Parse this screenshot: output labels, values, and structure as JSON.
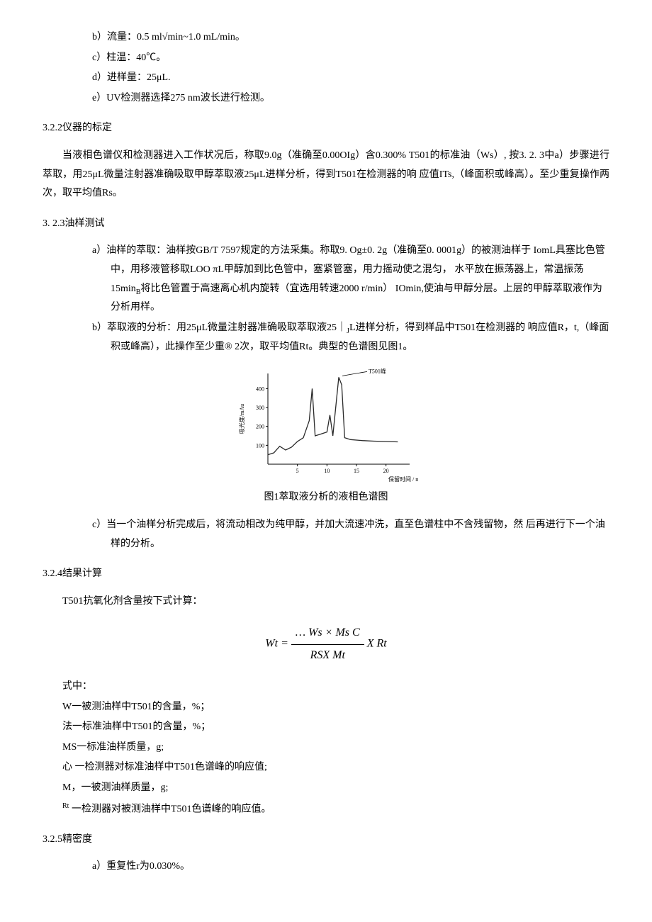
{
  "list_params": {
    "b": "b）流量：0.5 ml√min~1.0 mL/min。",
    "c": "c）柱温：40℃。",
    "d": "d）进样量：25μL.",
    "e": "e）UV检测器选择275 nm波长进行检测。"
  },
  "sec_322": {
    "heading": "3.2.2仪器的标定",
    "para": "当液相色谱仪和检测器进入工作状况后，称取9.0g（准确至0.00OIg）含0.300% T501的标准油（Ws）, 按3. 2. 3中a）步骤进行萃取，用25μL微量注射器准确吸取甲醇萃取液25μL进样分析，得到T501在检测器的响 应值ITs,（峰面积或峰高）。至少重复操作两次，取平均值Rs。"
  },
  "sec_323": {
    "heading": "3. 2.3油样测试",
    "a": "a）油样的萃取：油样按GB/T 7597规定的方法采集。称取9. Og±0. 2g（准确至0. 0001g）的被测油样于 IomL具塞比色管中，用移液管移取LOO πL甲醇加到比色管中，塞紧管塞，用力摇动使之混匀， 水平放在振荡器上，常温振荡15min",
    "a_sub": "B",
    "a_tail": "将比色管置于高速离心机内旋转（宜选用转速2000 r/min） IOmin,使油与甲醇分层。上层的甲醇萃取液作为分析用样。",
    "b": "b）萃取液的分析：用25μL微量注射器准确吸取萃取液25｜",
    "b_sub": "J",
    "b_tail": "L进样分析，得到样品中T501在检测器的 响应值R，t,（峰面积或峰高），此操作至少重® 2次，取平均值Rt。典型的色谱图见图1。",
    "c": "c）当一个油样分析完成后，将流动相改为纯甲醇，并加大流速冲洗，直至色谱柱中不含残留物，然 后再进行下一个油样的分析。"
  },
  "chart": {
    "type": "line",
    "peak_label": "T501峰",
    "y_axis_label": "吸光度/mAu",
    "x_axis_label": "保留时间 / min",
    "x_ticks": [
      5,
      10,
      15,
      20
    ],
    "y_ticks": [
      100,
      200,
      300,
      400
    ],
    "xlim": [
      0,
      24
    ],
    "ylim": [
      0,
      480
    ],
    "series": [
      {
        "x": 0,
        "y": 50
      },
      {
        "x": 1,
        "y": 60
      },
      {
        "x": 2,
        "y": 95
      },
      {
        "x": 3,
        "y": 75
      },
      {
        "x": 4,
        "y": 90
      },
      {
        "x": 5,
        "y": 120
      },
      {
        "x": 6,
        "y": 140
      },
      {
        "x": 7,
        "y": 230
      },
      {
        "x": 7.5,
        "y": 400
      },
      {
        "x": 8,
        "y": 150
      },
      {
        "x": 9,
        "y": 160
      },
      {
        "x": 10,
        "y": 170
      },
      {
        "x": 10.5,
        "y": 260
      },
      {
        "x": 11,
        "y": 150
      },
      {
        "x": 12,
        "y": 460
      },
      {
        "x": 12.5,
        "y": 420
      },
      {
        "x": 13,
        "y": 140
      },
      {
        "x": 14,
        "y": 130
      },
      {
        "x": 16,
        "y": 125
      },
      {
        "x": 18,
        "y": 122
      },
      {
        "x": 20,
        "y": 120
      },
      {
        "x": 22,
        "y": 118
      }
    ],
    "line_color": "#2a2a2a",
    "line_width": 1.3,
    "axis_color": "#000000",
    "tick_font_size": 8,
    "label_font_size": 8,
    "background_color": "#ffffff"
  },
  "figure_caption": "图1萃取液分析的液相色谱图",
  "sec_324": {
    "heading": "3.2.4结果计算",
    "intro": "T501抗氧化剂含量按下式计算："
  },
  "formula": {
    "lhs": "Wt =",
    "num": "… Ws × Ms C",
    "den": "RSX Mt",
    "rhs": "X Rt"
  },
  "defs": {
    "head": "式中：",
    "d1": "W一被测油样中T501的含量，%；",
    "d2": "法一标准油样中T501的含量，%；",
    "d3": "MS一标准油样质量，g;",
    "d4": "心 一检测器对标准油样中T501色谱峰的响应值;",
    "d5": "M，一被测油样质量，g;",
    "d6_sup": "Rt",
    "d6": " 一检测器对被测油样中T501色谱峰的响应值。"
  },
  "sec_325": {
    "heading": "3.2.5精密度",
    "a": "a）重复性r为0.030%。"
  }
}
